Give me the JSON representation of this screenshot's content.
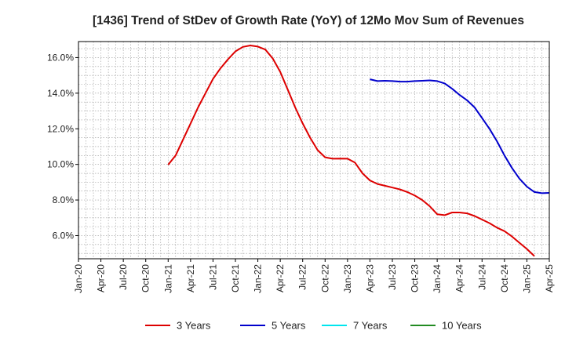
{
  "chart_data": {
    "type": "line",
    "title": "[1436]  Trend of StDev of Growth Rate (YoY) of 12Mo Mov Sum of Revenues",
    "xlabel": "",
    "ylabel": "",
    "ylim": [
      4.7,
      16.9
    ],
    "x_tick_labels": [
      "Jan-20",
      "Apr-20",
      "Jul-20",
      "Oct-20",
      "Jan-21",
      "Apr-21",
      "Jul-21",
      "Oct-21",
      "Jan-22",
      "Apr-22",
      "Jul-22",
      "Oct-22",
      "Jan-23",
      "Apr-23",
      "Jul-23",
      "Oct-23",
      "Jan-24",
      "Apr-24",
      "Jul-24",
      "Oct-24",
      "Jan-25",
      "Apr-25"
    ],
    "y_ticks": [
      6,
      8,
      10,
      12,
      14,
      16
    ],
    "y_tick_labels": [
      "6.0%",
      "8.0%",
      "10.0%",
      "12.0%",
      "14.0%",
      "16.0%"
    ],
    "grid": true,
    "legend_position": "bottom",
    "series": [
      {
        "name": "3 Years",
        "color": "#dd0000",
        "start_month_index": 12,
        "values": [
          9.98,
          10.5,
          11.4,
          12.3,
          13.2,
          14.0,
          14.8,
          15.4,
          15.9,
          16.35,
          16.6,
          16.68,
          16.62,
          16.45,
          15.95,
          15.2,
          14.2,
          13.2,
          12.3,
          11.5,
          10.8,
          10.4,
          10.32,
          10.33,
          10.32,
          10.1,
          9.5,
          9.1,
          8.9,
          8.8,
          8.7,
          8.6,
          8.45,
          8.25,
          8.0,
          7.65,
          7.2,
          7.15,
          7.3,
          7.3,
          7.25,
          7.1,
          6.9,
          6.7,
          6.45,
          6.25,
          5.95,
          5.6,
          5.25,
          4.85
        ]
      },
      {
        "name": "5 Years",
        "color": "#0000cc",
        "start_month_index": 39,
        "values": [
          14.78,
          14.68,
          14.7,
          14.68,
          14.65,
          14.65,
          14.68,
          14.7,
          14.72,
          14.68,
          14.55,
          14.25,
          13.9,
          13.6,
          13.2,
          12.6,
          12.0,
          11.3,
          10.5,
          9.8,
          9.2,
          8.75,
          8.45,
          8.38,
          8.4
        ]
      },
      {
        "name": "7 Years",
        "color": "#00e5ee",
        "start_month_index": 0,
        "values": []
      },
      {
        "name": "10 Years",
        "color": "#228b22",
        "start_month_index": 0,
        "values": []
      }
    ]
  },
  "colors": {
    "axis": "#000000",
    "grid": "#999999",
    "text": "#222222"
  }
}
